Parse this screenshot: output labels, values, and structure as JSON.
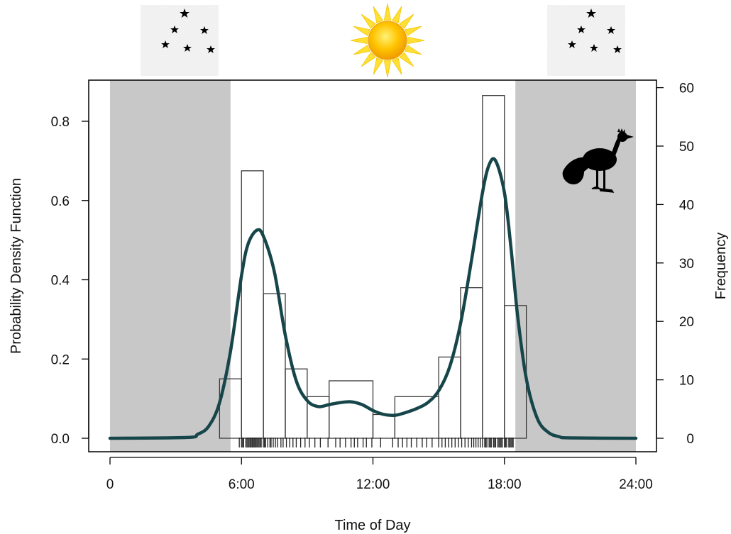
{
  "chart_data": {
    "type": "histogram-density",
    "xlabel": "Time of Day",
    "ylabel_left": "Probability Density Function",
    "ylabel_right": "Frequency",
    "x_unit": "hours",
    "xlim": [
      0,
      24
    ],
    "ylim_left": [
      0,
      0.88
    ],
    "ylim_right": [
      0,
      60
    ],
    "x_ticks": [
      {
        "value": 0,
        "label": "0"
      },
      {
        "value": 6,
        "label": "6:00"
      },
      {
        "value": 12,
        "label": "12:00"
      },
      {
        "value": 18,
        "label": "18:00"
      },
      {
        "value": 24,
        "label": "24:00"
      }
    ],
    "y_ticks_left": [
      {
        "value": 0.0,
        "label": "0.0"
      },
      {
        "value": 0.2,
        "label": "0.2"
      },
      {
        "value": 0.4,
        "label": "0.4"
      },
      {
        "value": 0.6,
        "label": "0.6"
      },
      {
        "value": 0.8,
        "label": "0.8"
      }
    ],
    "y_ticks_right": [
      {
        "value": 0,
        "label": "0"
      },
      {
        "value": 10,
        "label": "10"
      },
      {
        "value": 20,
        "label": "20"
      },
      {
        "value": 30,
        "label": "30"
      },
      {
        "value": 40,
        "label": "40"
      },
      {
        "value": 50,
        "label": "50"
      },
      {
        "value": 60,
        "label": "60"
      }
    ],
    "night_shading": [
      {
        "from": 0,
        "to": 5.5
      },
      {
        "from": 18.5,
        "to": 24
      }
    ],
    "histogram_bins": [
      {
        "from": 5,
        "to": 6,
        "density": 0.15
      },
      {
        "from": 6,
        "to": 7,
        "density": 0.675
      },
      {
        "from": 7,
        "to": 8,
        "density": 0.365
      },
      {
        "from": 8,
        "to": 9,
        "density": 0.175
      },
      {
        "from": 9,
        "to": 10,
        "density": 0.105
      },
      {
        "from": 10,
        "to": 12,
        "density": 0.145
      },
      {
        "from": 12,
        "to": 13,
        "density": 0.06
      },
      {
        "from": 13,
        "to": 15,
        "density": 0.105
      },
      {
        "from": 15,
        "to": 16,
        "density": 0.205
      },
      {
        "from": 16,
        "to": 17,
        "density": 0.38
      },
      {
        "from": 17,
        "to": 18,
        "density": 0.865
      },
      {
        "from": 18,
        "to": 19,
        "density": 0.335
      }
    ],
    "density_curve": {
      "x": [
        0,
        3.5,
        4,
        4.5,
        5,
        5.5,
        6,
        6.3,
        6.7,
        7,
        7.5,
        8,
        8.5,
        9,
        9.5,
        10,
        10.5,
        11,
        11.5,
        12,
        12.5,
        13,
        13.5,
        14,
        14.5,
        15,
        15.5,
        16,
        16.5,
        17,
        17.3,
        17.6,
        18,
        18.3,
        18.6,
        19,
        19.5,
        20,
        20.5,
        21,
        24
      ],
      "y": [
        0.0,
        0.002,
        0.01,
        0.03,
        0.09,
        0.22,
        0.41,
        0.49,
        0.525,
        0.51,
        0.42,
        0.26,
        0.145,
        0.095,
        0.08,
        0.085,
        0.09,
        0.092,
        0.085,
        0.07,
        0.06,
        0.058,
        0.065,
        0.075,
        0.09,
        0.12,
        0.18,
        0.29,
        0.45,
        0.62,
        0.69,
        0.7,
        0.62,
        0.48,
        0.31,
        0.15,
        0.05,
        0.015,
        0.004,
        0.001,
        0.0
      ]
    },
    "rug_times": [
      5.9,
      6.0,
      6.05,
      6.1,
      6.2,
      6.25,
      6.3,
      6.35,
      6.4,
      6.45,
      6.5,
      6.55,
      6.6,
      6.65,
      6.7,
      6.75,
      6.8,
      6.85,
      6.9,
      7.0,
      7.05,
      7.1,
      7.2,
      7.3,
      7.35,
      7.45,
      7.55,
      7.65,
      7.8,
      7.9,
      8.05,
      8.2,
      8.35,
      8.5,
      8.7,
      8.9,
      9.1,
      9.35,
      9.6,
      9.95,
      10.3,
      10.5,
      10.75,
      11.0,
      11.15,
      11.3,
      11.55,
      11.7,
      11.95,
      12.35,
      12.9,
      13.15,
      13.35,
      13.55,
      13.75,
      14.0,
      14.25,
      14.45,
      14.7,
      15.0,
      15.15,
      15.3,
      15.45,
      15.6,
      15.75,
      15.9,
      16.05,
      16.2,
      16.35,
      16.5,
      16.6,
      16.7,
      16.8,
      16.9,
      17.0,
      17.1,
      17.15,
      17.2,
      17.3,
      17.35,
      17.4,
      17.5,
      17.55,
      17.6,
      17.7,
      17.75,
      17.8,
      17.85,
      17.9,
      18.0,
      18.05,
      18.1,
      18.2,
      18.25,
      18.3,
      18.35,
      18.4
    ],
    "colors": {
      "curve": "#17464a",
      "night_fill": "#c8c8c8",
      "histogram_stroke": "#3a3a3a",
      "rug": "#222222",
      "sun_core": "#f6b800",
      "sun_rays": "#ffe033"
    },
    "icons": {
      "night_left": "moon-stars-icon",
      "day": "sun-icon",
      "night_right": "moon-stars-icon",
      "species": "bird-silhouette-icon"
    }
  }
}
